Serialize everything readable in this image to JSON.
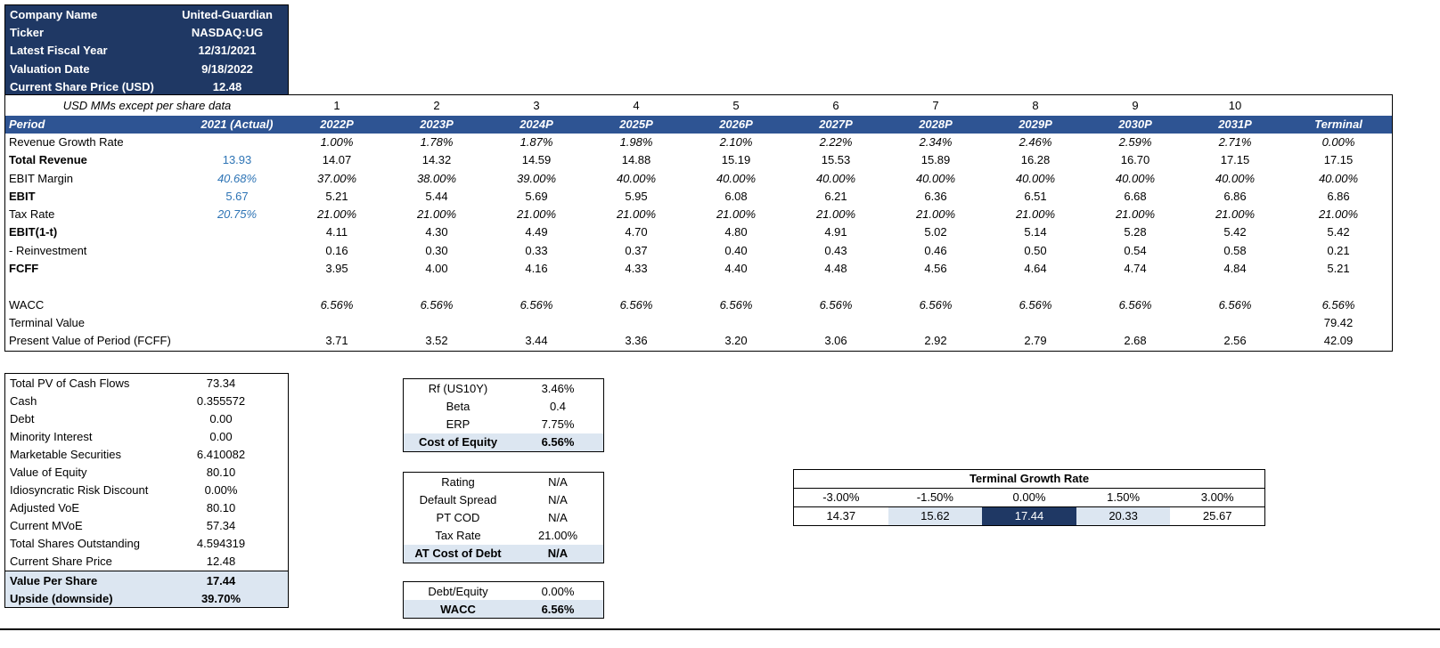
{
  "colors": {
    "navy": "#1F3864",
    "header_blue": "#2E5493",
    "highlight_blue": "#DCE6F1",
    "blue_text": "#2E74B5"
  },
  "company_info": {
    "rows": [
      {
        "label": "Company Name",
        "value": "United-Guardian"
      },
      {
        "label": "Ticker",
        "value": "NASDAQ:UG"
      },
      {
        "label": "Latest Fiscal Year",
        "value": "12/31/2021"
      },
      {
        "label": "Valuation Date",
        "value": "9/18/2022"
      },
      {
        "label": "Current Share Price (USD)",
        "value": "12.48"
      }
    ]
  },
  "dcf_table": {
    "units_note": "USD MMs except per share data",
    "period_numbers": [
      "1",
      "2",
      "3",
      "4",
      "5",
      "6",
      "7",
      "8",
      "9",
      "10"
    ],
    "header": [
      "Period",
      "2021 (Actual)",
      "2022P",
      "2023P",
      "2024P",
      "2025P",
      "2026P",
      "2027P",
      "2028P",
      "2029P",
      "2030P",
      "2031P",
      "Terminal"
    ],
    "rows": [
      {
        "label": "Revenue Growth Rate",
        "pct": true,
        "actual": "",
        "values": [
          "1.00%",
          "1.78%",
          "1.87%",
          "1.98%",
          "2.10%",
          "2.22%",
          "2.34%",
          "2.46%",
          "2.59%",
          "2.71%"
        ],
        "terminal": "0.00%"
      },
      {
        "label": "Total Revenue",
        "bold": true,
        "actual": "13.93",
        "values": [
          "14.07",
          "14.32",
          "14.59",
          "14.88",
          "15.19",
          "15.53",
          "15.89",
          "16.28",
          "16.70",
          "17.15"
        ],
        "terminal": "17.15"
      },
      {
        "label": "EBIT Margin",
        "pct": true,
        "actual": "40.68%",
        "values": [
          "37.00%",
          "38.00%",
          "39.00%",
          "40.00%",
          "40.00%",
          "40.00%",
          "40.00%",
          "40.00%",
          "40.00%",
          "40.00%"
        ],
        "terminal": "40.00%"
      },
      {
        "label": "EBIT",
        "bold": true,
        "actual": "5.67",
        "values": [
          "5.21",
          "5.44",
          "5.69",
          "5.95",
          "6.08",
          "6.21",
          "6.36",
          "6.51",
          "6.68",
          "6.86"
        ],
        "terminal": "6.86"
      },
      {
        "label": "Tax Rate",
        "pct": true,
        "actual": "20.75%",
        "values": [
          "21.00%",
          "21.00%",
          "21.00%",
          "21.00%",
          "21.00%",
          "21.00%",
          "21.00%",
          "21.00%",
          "21.00%",
          "21.00%"
        ],
        "terminal": "21.00%"
      },
      {
        "label": "EBIT(1-t)",
        "bold": true,
        "actual": "",
        "values": [
          "4.11",
          "4.30",
          "4.49",
          "4.70",
          "4.80",
          "4.91",
          "5.02",
          "5.14",
          "5.28",
          "5.42"
        ],
        "terminal": "5.42"
      },
      {
        "label": "- Reinvestment",
        "actual": "",
        "values": [
          "0.16",
          "0.30",
          "0.33",
          "0.37",
          "0.40",
          "0.43",
          "0.46",
          "0.50",
          "0.54",
          "0.58"
        ],
        "terminal": "0.21"
      },
      {
        "label": "FCFF",
        "bold": true,
        "actual": "",
        "values": [
          "3.95",
          "4.00",
          "4.16",
          "4.33",
          "4.40",
          "4.48",
          "4.56",
          "4.64",
          "4.74",
          "4.84"
        ],
        "terminal": "5.21"
      },
      {
        "label": "",
        "blank": true,
        "actual": "",
        "values": [
          "",
          "",
          "",
          "",
          "",
          "",
          "",
          "",
          "",
          ""
        ],
        "terminal": ""
      },
      {
        "label": "WACC",
        "pct": true,
        "actual": "",
        "values": [
          "6.56%",
          "6.56%",
          "6.56%",
          "6.56%",
          "6.56%",
          "6.56%",
          "6.56%",
          "6.56%",
          "6.56%",
          "6.56%"
        ],
        "terminal": "6.56%"
      },
      {
        "label": "Terminal Value",
        "actual": "",
        "values": [
          "",
          "",
          "",
          "",
          "",
          "",
          "",
          "",
          "",
          ""
        ],
        "terminal": "79.42"
      },
      {
        "label": "Present Value of Period (FCFF)",
        "actual": "",
        "values": [
          "3.71",
          "3.52",
          "3.44",
          "3.36",
          "3.20",
          "3.06",
          "2.92",
          "2.79",
          "2.68",
          "2.56"
        ],
        "terminal": "42.09"
      }
    ]
  },
  "valuation_summary": {
    "rows": [
      {
        "label": "Total PV of Cash Flows",
        "value": "73.34"
      },
      {
        "label": "Cash",
        "value": "0.355572"
      },
      {
        "label": "Debt",
        "value": "0.00"
      },
      {
        "label": "Minority Interest",
        "value": "0.00"
      },
      {
        "label": "Marketable Securities",
        "value": "6.410082"
      },
      {
        "label": "Value of Equity",
        "value": "80.10"
      },
      {
        "label": "Idiosyncratic Risk Discount",
        "value": "0.00%"
      },
      {
        "label": "Adjusted VoE",
        "value": "80.10"
      },
      {
        "label": "Current MVoE",
        "value": "57.34"
      },
      {
        "label": "Total Shares Outstanding",
        "value": "4.594319"
      },
      {
        "label": "Current Share Price",
        "value": "12.48"
      },
      {
        "label": "Value Per Share",
        "value": "17.44",
        "hl": true,
        "topline": true
      },
      {
        "label": "Upside (downside)",
        "value": "39.70%",
        "hl": true
      }
    ]
  },
  "cost_of_equity": {
    "rows": [
      {
        "label": "Rf (US10Y)",
        "value": "3.46%"
      },
      {
        "label": "Beta",
        "value": "0.4"
      },
      {
        "label": "ERP",
        "value": "7.75%"
      },
      {
        "label": "Cost of Equity",
        "value": "6.56%",
        "hl": true
      }
    ]
  },
  "cost_of_debt": {
    "rows": [
      {
        "label": "Rating",
        "value": "N/A"
      },
      {
        "label": "Default Spread",
        "value": "N/A"
      },
      {
        "label": "PT COD",
        "value": "N/A"
      },
      {
        "label": "Tax Rate",
        "value": "21.00%"
      },
      {
        "label": "AT Cost of Debt",
        "value": "N/A",
        "hl": true
      }
    ]
  },
  "wacc_box": {
    "rows": [
      {
        "label": "Debt/Equity",
        "value": "0.00%"
      },
      {
        "label": "WACC",
        "value": "6.56%",
        "hl": true
      }
    ]
  },
  "sensitivity": {
    "title": "Terminal Growth Rate",
    "rates": [
      "-3.00%",
      "-1.50%",
      "0.00%",
      "1.50%",
      "3.00%"
    ],
    "values": [
      "14.37",
      "15.62",
      "17.44",
      "20.33",
      "25.67"
    ],
    "highlights": [
      "none",
      "light",
      "dark",
      "light",
      "none"
    ]
  }
}
